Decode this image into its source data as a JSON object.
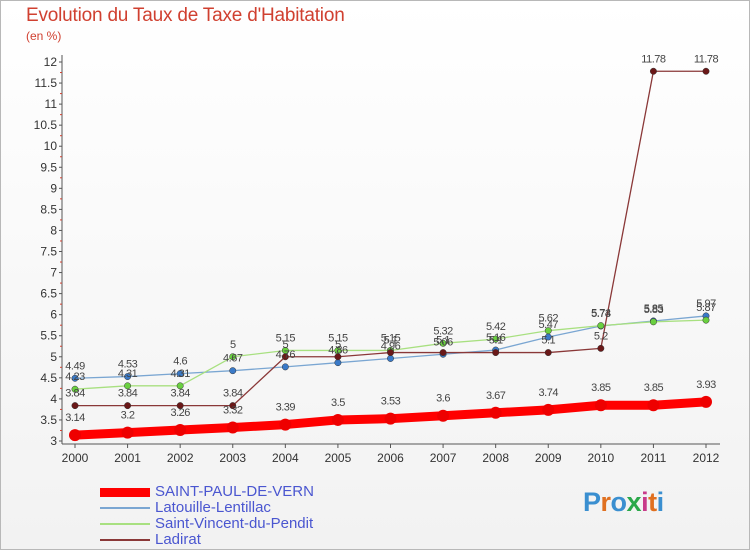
{
  "title": "Evolution du Taux de Taxe d'Habitation",
  "unit_label": "(en %)",
  "brand": {
    "text": "Proxiti",
    "colors": [
      "#3a8fd0",
      "#e07020",
      "#3a8fd0",
      "#2aa84a",
      "#c83a8a",
      "#e07020",
      "#3a8fd0"
    ]
  },
  "chart_data": {
    "type": "line",
    "title": "Evolution du Taux de Taxe d'Habitation",
    "ylabel": "(en %)",
    "xlabel": "",
    "x": [
      "2000",
      "2001",
      "2002",
      "2003",
      "2004",
      "2005",
      "2006",
      "2007",
      "2008",
      "2009",
      "2010",
      "2011",
      "2012"
    ],
    "ylim": [
      3,
      12
    ],
    "yticks": [
      "3",
      "3.5",
      "4",
      "4.5",
      "5",
      "5.5",
      "6",
      "6.5",
      "7",
      "7.5",
      "8",
      "8.5",
      "9",
      "9.5",
      "10",
      "10.5",
      "11",
      "11.5",
      "12"
    ],
    "grid": false,
    "legend_position": "bottom-left",
    "series": [
      {
        "name": "SAINT-PAUL-DE-VERN",
        "color": "#ff0000",
        "marker": "#ee0000",
        "values": [
          3.14,
          3.2,
          3.26,
          3.32,
          3.39,
          3.5,
          3.53,
          3.6,
          3.67,
          3.74,
          3.85,
          3.85,
          3.93
        ],
        "labels": [
          "3.14",
          "3.2",
          "3.26",
          "3.32",
          "3.39",
          "3.5",
          "3.53",
          "3.6",
          "3.67",
          "3.74",
          "3.85",
          "3.85",
          "3.93"
        ]
      },
      {
        "name": "Latouille-Lentillac",
        "color": "#7aa6d2",
        "marker": "#3a7ac8",
        "values": [
          4.49,
          4.53,
          4.6,
          4.67,
          4.76,
          4.86,
          4.96,
          5.06,
          5.16,
          5.47,
          5.73,
          5.85,
          5.97
        ],
        "labels": [
          "4.49",
          "4.53",
          "4.6",
          "4.67",
          "4.76",
          "4.86",
          "4.96",
          "5.06",
          "5.16",
          "5.47",
          "5.73",
          "5.85",
          "5.97"
        ]
      },
      {
        "name": "Saint-Vincent-du-Pendit",
        "color": "#a8e080",
        "marker": "#6ad040",
        "values": [
          4.23,
          4.31,
          4.31,
          5,
          5.15,
          5.15,
          5.15,
          5.32,
          5.42,
          5.62,
          5.74,
          5.83,
          5.87
        ],
        "labels": [
          "4.23",
          "4.31",
          "4.31",
          "5",
          "5.15",
          "5.15",
          "5.15",
          "5.32",
          "5.42",
          "5.62",
          "5.74",
          "5.83",
          "5.87"
        ]
      },
      {
        "name": "Ladirat",
        "color": "#8a3838",
        "marker": "#6a1818",
        "values": [
          3.84,
          3.84,
          3.84,
          3.84,
          5,
          5,
          5.1,
          5.1,
          5.1,
          5.1,
          5.2,
          11.78,
          11.78
        ],
        "labels": [
          "3.84",
          "3.84",
          "3.84",
          "3.84",
          "5",
          "5",
          "5.1",
          "5.1",
          "5.1",
          "5.1",
          "5.2",
          "11.78",
          "11.78"
        ]
      }
    ]
  }
}
